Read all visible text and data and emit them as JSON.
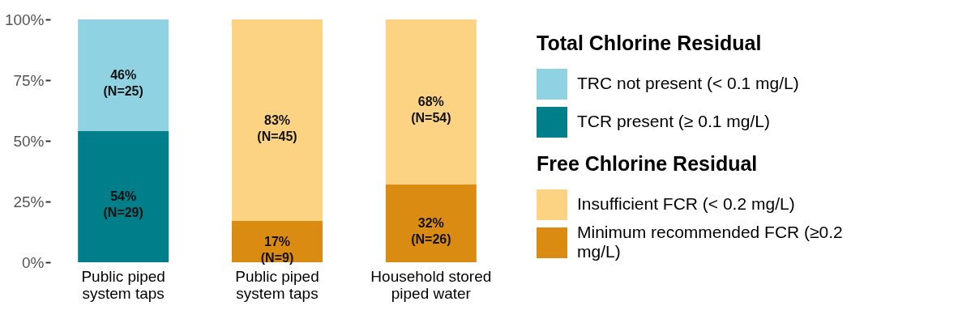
{
  "chart_data": {
    "type": "bar",
    "stacked": true,
    "categories": [
      "Public piped system taps",
      "Public piped system taps",
      "Household stored piped water"
    ],
    "legend_title": "Total Chlorine Residual",
    "annotations": [
      "Free Chlorine Residual"
    ],
    "ylim": [
      0,
      100
    ],
    "yticks": [
      {
        "value": 0,
        "label": "0%"
      },
      {
        "value": 25,
        "label": "25%"
      },
      {
        "value": 50,
        "label": "50%"
      },
      {
        "value": 75,
        "label": "75%"
      },
      {
        "value": 100,
        "label": "100%"
      }
    ],
    "grid": false,
    "legend": "right",
    "series": [
      {
        "name": "TCR present (≥ 0.1 mg/L)",
        "color": "#007f8a",
        "values": [
          54,
          null,
          null
        ],
        "value_labels": [
          "54%\n(N=29)",
          null,
          null
        ]
      },
      {
        "name": "TRC not present (< 0.1 mg/L)",
        "color": "#8fd3e3",
        "values": [
          46,
          null,
          null
        ],
        "value_labels": [
          "46%\n(N=25)",
          null,
          null
        ]
      },
      {
        "name": "Minimum recommended FCR (≥0.2 mg/L)",
        "color": "#d98b12",
        "values": [
          null,
          17,
          32
        ],
        "value_labels": [
          null,
          "17%\n(N=9)",
          "32%\n(N=26)"
        ]
      },
      {
        "name": "Insufficient FCR (< 0.2 mg/L)",
        "color": "#fcd383",
        "values": [
          null,
          83,
          68
        ],
        "value_labels": [
          null,
          "83%\n(N=45)",
          "68%\n(N=54)"
        ]
      }
    ]
  }
}
